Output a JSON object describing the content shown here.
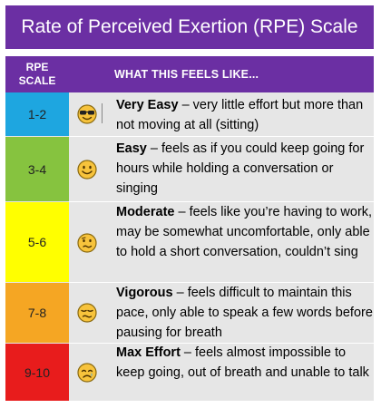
{
  "title": "Rate of Perceived Exertion (RPE) Scale",
  "header": {
    "scale_line1": "RPE",
    "scale_line2": "SCALE",
    "feels_like": "WHAT THIS FEELS LIKE..."
  },
  "colors": {
    "purple": "#6b2fa3",
    "body": "#e6e6e6",
    "very_easy": "#1ea6e0",
    "easy": "#86c33f",
    "moderate": "#ffff00",
    "vigorous": "#f5a623",
    "max_effort": "#e81c1c"
  },
  "rows": [
    {
      "scale": "1-2",
      "level": "Very Easy",
      "text": " – very little effort but more than not moving at all (sitting)",
      "icon": "sunglasses-face-icon"
    },
    {
      "scale": "3-4",
      "level": "Easy",
      "text": " – feels as if you could keep going for hours while holding a conversation or singing",
      "icon": "smiling-face-icon"
    },
    {
      "scale": "5-6",
      "level": "Moderate",
      "text": " – feels like you’re having to work, may be somewhat uncomfortable, only able to hold a short conversation, couldn’t sing",
      "icon": "confused-face-icon"
    },
    {
      "scale": "7-8",
      "level": "Vigorous",
      "text": " – feels difficult to maintain this pace, only able to speak a few words before pausing for breath",
      "icon": "unamused-face-icon"
    },
    {
      "scale": "9-10",
      "level": "Max Effort",
      "text": " – feels almost impossible to keep going, out of breath and unable to talk",
      "icon": "crying-face-icon"
    }
  ]
}
